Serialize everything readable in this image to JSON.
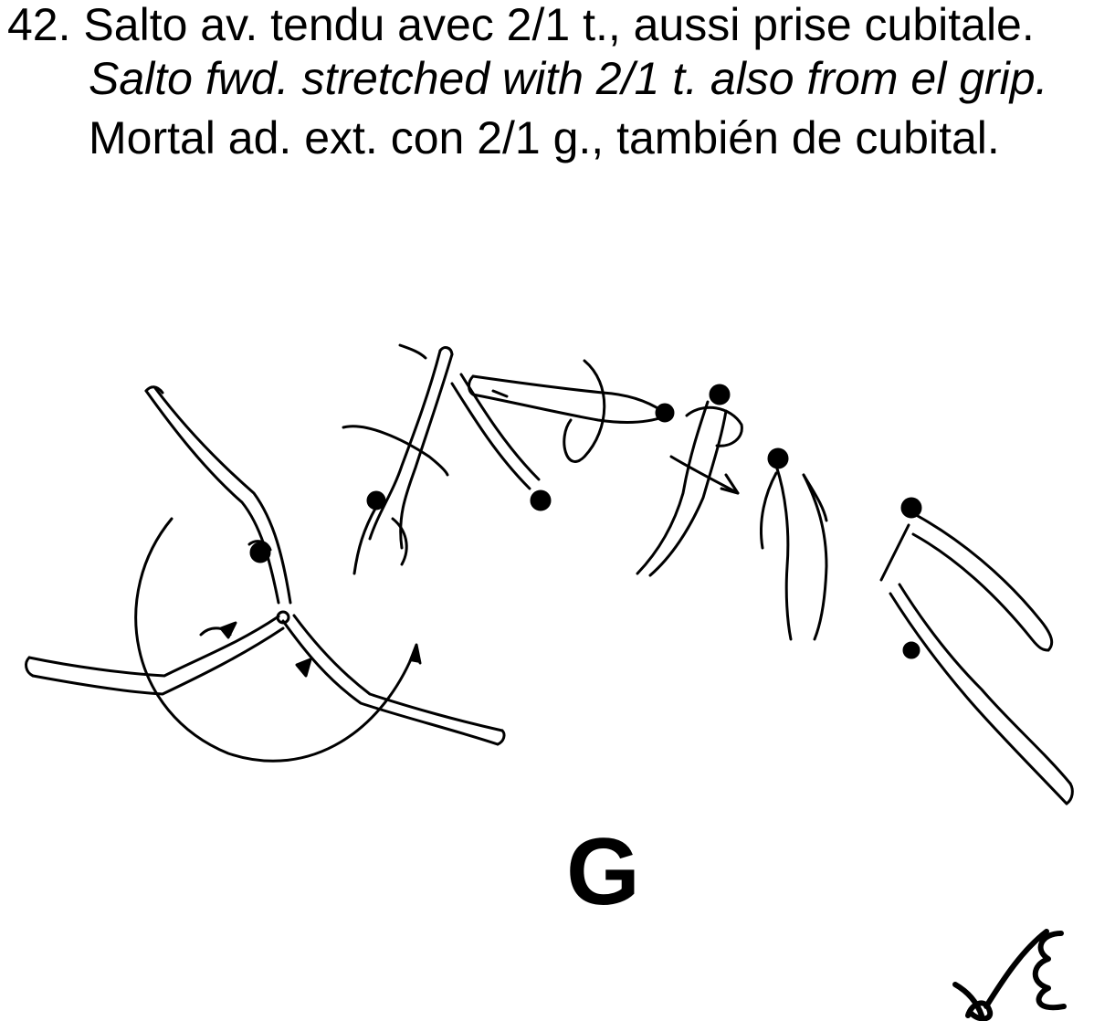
{
  "element": {
    "number": "42.",
    "text_fr": "Salto av. tendu avec 2/1 t., aussi prise cubitale.",
    "text_en": "Salto fwd. stretched with 2/1 t. also from el grip.",
    "text_es": "Mortal ad. ext. con 2/1 g., también de cubital."
  },
  "difficulty_value": "G",
  "colors": {
    "ink": "#000000",
    "background": "#ffffff"
  },
  "icons": [
    "gymnast-figure-sequence",
    "rotation-arrow",
    "skill-symbol"
  ]
}
